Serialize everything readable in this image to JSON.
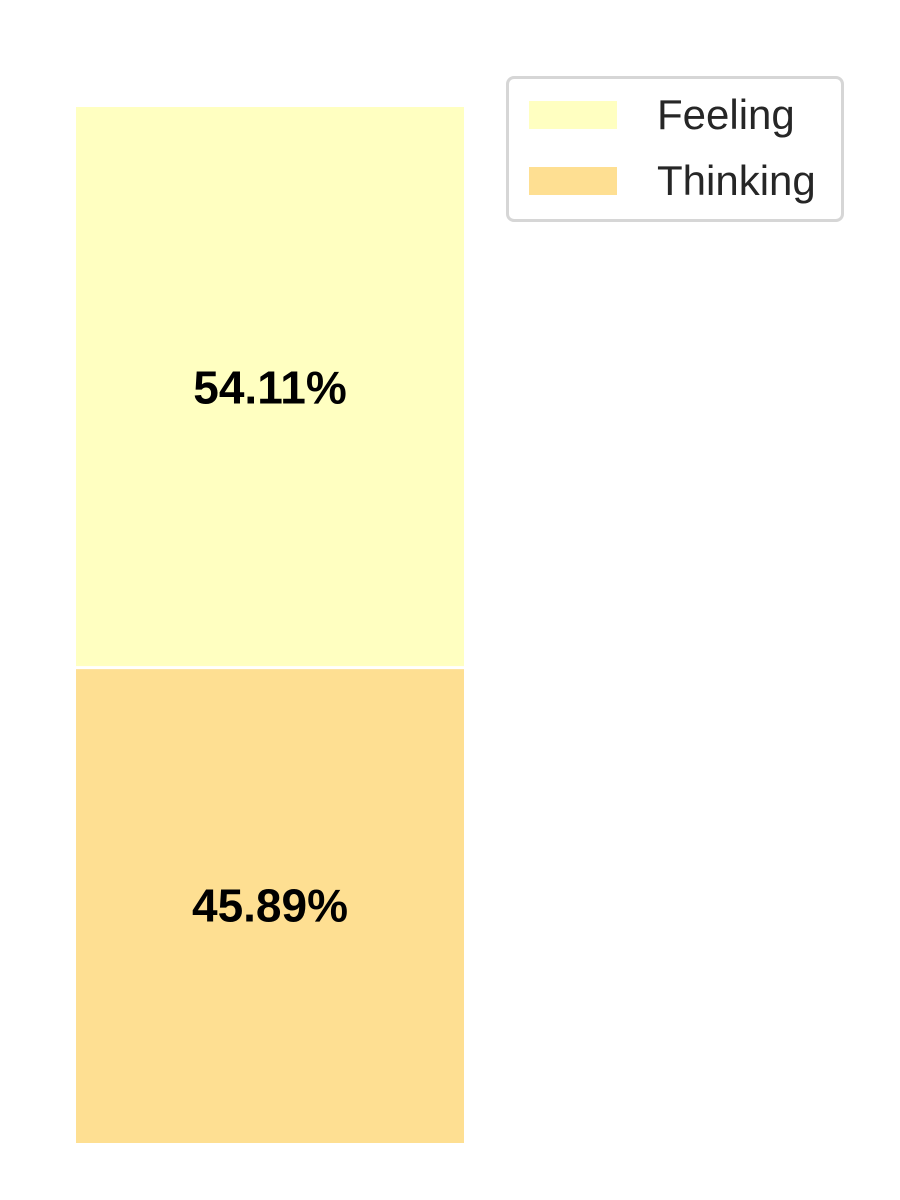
{
  "chart_data": {
    "type": "bar",
    "stacked": true,
    "categories": [
      ""
    ],
    "series": [
      {
        "name": "Thinking",
        "values": [
          45.89
        ],
        "label": "45.89%",
        "color": "#fedf92"
      },
      {
        "name": "Feeling",
        "values": [
          54.11
        ],
        "label": "54.11%",
        "color": "#ffffc1"
      }
    ],
    "ylim": [
      0,
      100
    ],
    "axes_visible": false,
    "grid": false,
    "legend": {
      "placement": "top-right",
      "entries": [
        {
          "label": "Feeling",
          "color": "#ffffc1"
        },
        {
          "label": "Thinking",
          "color": "#fedf92"
        }
      ]
    }
  }
}
